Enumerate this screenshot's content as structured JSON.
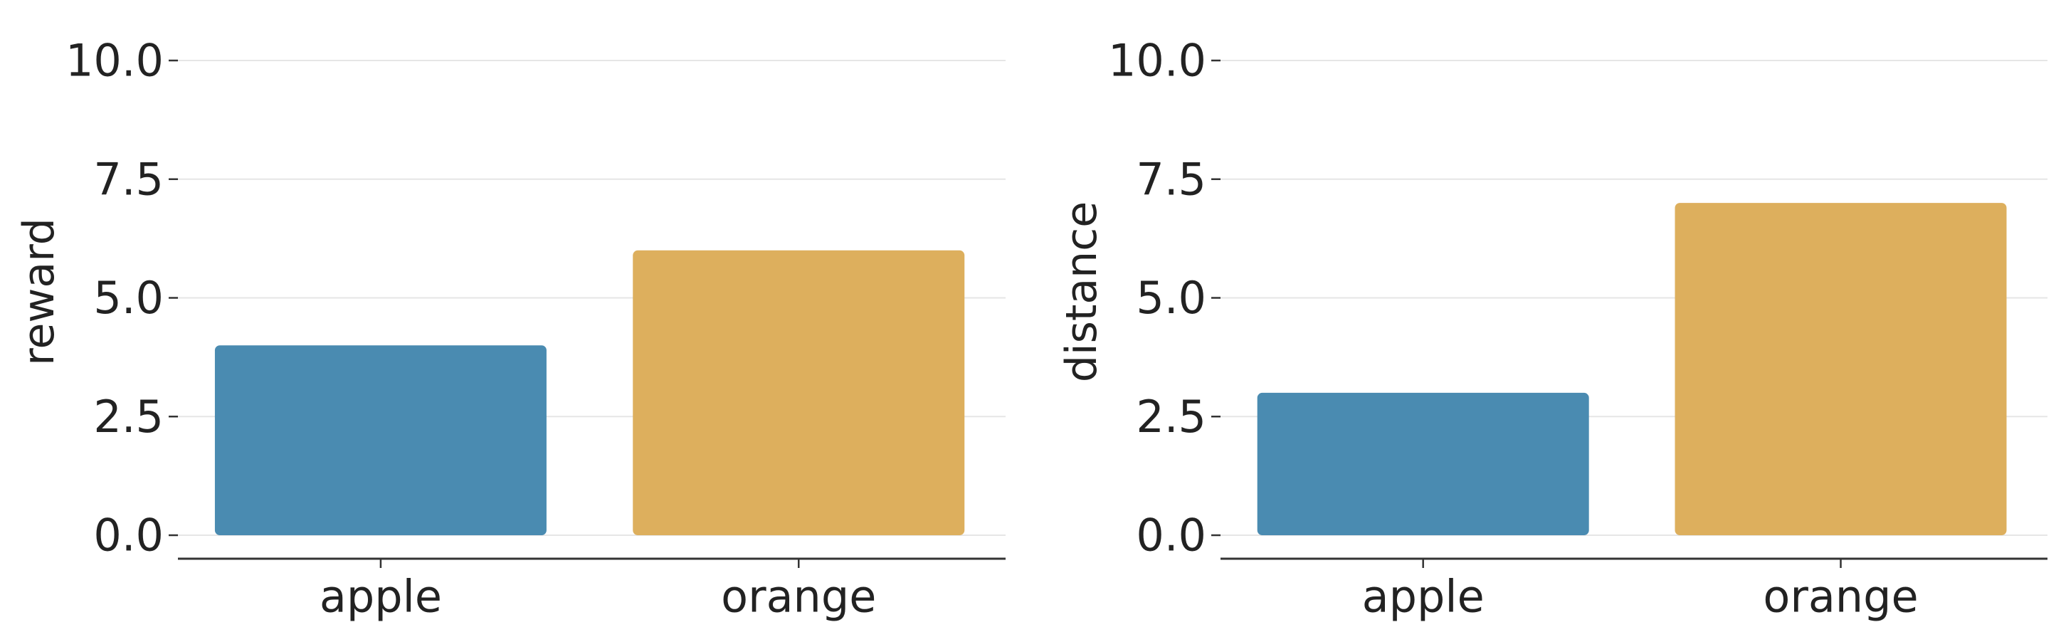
{
  "chart_data": [
    {
      "type": "bar",
      "categories": [
        "apple",
        "orange"
      ],
      "values": [
        4,
        6
      ],
      "colors": [
        "#4A8BB1",
        "#DDAF5D"
      ],
      "ylabel": "reward",
      "ylim": [
        -0.9,
        10.0
      ],
      "yticks": [
        "0.0",
        "2.5",
        "5.0",
        "7.5",
        "10.0"
      ],
      "ytick_values": [
        0,
        2.5,
        5,
        7.5,
        10
      ],
      "grid": true,
      "grid_axis": "y"
    },
    {
      "type": "bar",
      "categories": [
        "apple",
        "orange"
      ],
      "values": [
        3,
        7
      ],
      "colors": [
        "#4A8BB1",
        "#DDAF5D"
      ],
      "ylabel": "distance",
      "ylim": [
        -0.9,
        10.0
      ],
      "yticks": [
        "0.0",
        "2.5",
        "5.0",
        "7.5",
        "10.0"
      ],
      "ytick_values": [
        0,
        2.5,
        5,
        7.5,
        10
      ],
      "grid": true,
      "grid_axis": "y"
    }
  ]
}
